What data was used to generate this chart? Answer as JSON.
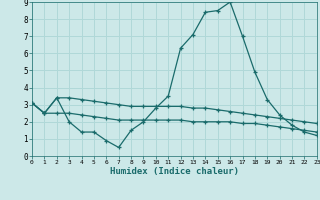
{
  "xlabel": "Humidex (Indice chaleur)",
  "x_ticks": [
    0,
    1,
    2,
    3,
    4,
    5,
    6,
    7,
    8,
    9,
    10,
    11,
    12,
    13,
    14,
    15,
    16,
    17,
    18,
    19,
    20,
    21,
    22,
    23
  ],
  "ylim": [
    0,
    9
  ],
  "xlim": [
    0,
    23
  ],
  "background_color": "#cce8e8",
  "line_color": "#1a6b6b",
  "grid_color": "#b0d8d8",
  "line1": [
    3.1,
    2.5,
    3.4,
    2.0,
    1.4,
    1.4,
    0.9,
    0.5,
    1.5,
    2.0,
    2.8,
    3.5,
    6.3,
    7.1,
    8.4,
    8.5,
    9.0,
    7.0,
    4.9,
    3.3,
    2.4,
    1.8,
    1.4,
    1.2
  ],
  "line2": [
    3.1,
    2.5,
    3.4,
    3.4,
    3.3,
    3.2,
    3.1,
    3.0,
    2.9,
    2.9,
    2.9,
    2.9,
    2.9,
    2.8,
    2.8,
    2.7,
    2.6,
    2.5,
    2.4,
    2.3,
    2.2,
    2.1,
    2.0,
    1.9
  ],
  "line3": [
    3.1,
    2.5,
    2.5,
    2.5,
    2.4,
    2.3,
    2.2,
    2.1,
    2.1,
    2.1,
    2.1,
    2.1,
    2.1,
    2.0,
    2.0,
    2.0,
    2.0,
    1.9,
    1.9,
    1.8,
    1.7,
    1.6,
    1.5,
    1.4
  ]
}
